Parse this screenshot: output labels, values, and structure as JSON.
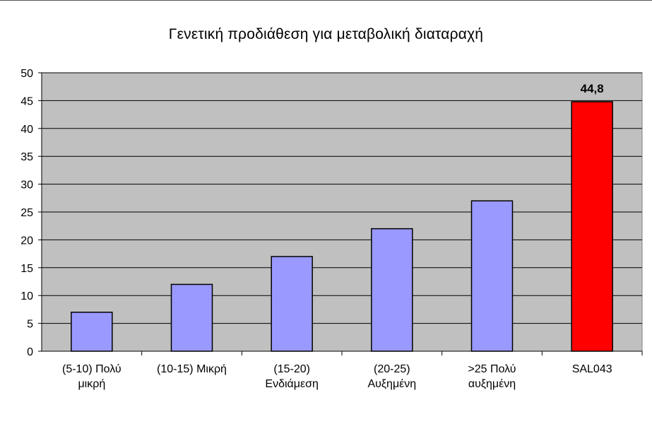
{
  "chart_data": {
    "type": "bar",
    "title": "Γενετική προδιάθεση για μεταβολική διαταραχή",
    "xlabel": "",
    "ylabel": "",
    "ylim": [
      0,
      50
    ],
    "yticks": [
      0,
      5,
      10,
      15,
      20,
      25,
      30,
      35,
      40,
      45,
      50
    ],
    "grid": true,
    "legend": "none",
    "categories": [
      [
        "(5-10) Πολύ",
        "μικρή"
      ],
      [
        "(10-15) Μικρή"
      ],
      [
        "(15-20)",
        "Ενδιάμεση"
      ],
      [
        "(20-25)",
        "Αυξημένη"
      ],
      [
        ">25 Πολύ",
        "αυξημένη"
      ],
      [
        "SAL043"
      ]
    ],
    "values": [
      7,
      12,
      17,
      22,
      27,
      44.8
    ],
    "colors": [
      "#9999ff",
      "#9999ff",
      "#9999ff",
      "#9999ff",
      "#9999ff",
      "#ff0000"
    ],
    "data_labels": [
      "",
      "",
      "",
      "",
      "",
      "44,8"
    ],
    "plot_bg": "#c0c0c0"
  }
}
